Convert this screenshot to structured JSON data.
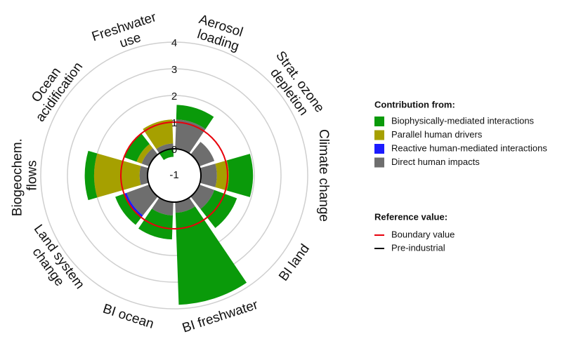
{
  "chart_data": {
    "type": "polar_bar",
    "categories": [
      "Aerosol loading",
      "Strat. ozone depletion",
      "Climate change",
      "BI land",
      "BI freshwater",
      "BI ocean",
      "Land system change",
      "Biogeochem. flows",
      "Ocean acidification",
      "Freshwater use"
    ],
    "series": [
      {
        "name": "Direct human impacts",
        "color": "#6e6e6e",
        "values": [
          1.1,
          0.6,
          0.6,
          0.6,
          0.4,
          0.5,
          0.9,
          0.3,
          0.3,
          0.2
        ]
      },
      {
        "name": "Reactive human-mediated interactions",
        "color": "#1c1cff",
        "values": [
          0,
          0,
          0,
          0,
          0,
          0,
          0.1,
          0,
          0,
          0
        ]
      },
      {
        "name": "Parallel human drivers",
        "color": "#a6a000",
        "values": [
          0,
          0,
          0.45,
          0,
          0,
          0,
          0,
          1.7,
          0.2,
          0.9
        ]
      },
      {
        "name": "Biophysically-mediated interactions",
        "color": "#0a9a0a",
        "values": [
          0.55,
          0,
          0.9,
          0.9,
          3.45,
          0.9,
          0.35,
          0.35,
          0.5,
          -0.3
        ]
      }
    ],
    "legend_order": [
      3,
      2,
      1,
      0
    ],
    "legend_title": "Contribution from:",
    "reference_title": "Reference value:",
    "reference_lines": [
      {
        "name": "Boundary value",
        "value": 1,
        "color": "#e8000b"
      },
      {
        "name": "Pre-industrial",
        "value": 0,
        "color": "#000000"
      }
    ],
    "ylim": [
      -1,
      4
    ],
    "yticks": [
      -1,
      0,
      1,
      2,
      3,
      4
    ],
    "grid": true
  }
}
